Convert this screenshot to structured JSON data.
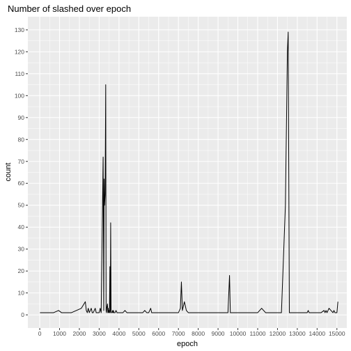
{
  "chart_data": {
    "type": "line",
    "title": "Number of slashed over epoch",
    "xlabel": "epoch",
    "ylabel": "count",
    "xlim": [
      -600,
      15500
    ],
    "ylim": [
      -6,
      136
    ],
    "x_ticks": [
      0,
      1000,
      2000,
      3000,
      4000,
      5000,
      6000,
      7000,
      8000,
      9000,
      10000,
      11000,
      12000,
      13000,
      14000,
      15000
    ],
    "y_ticks": [
      0,
      10,
      20,
      30,
      40,
      50,
      60,
      70,
      80,
      90,
      100,
      110,
      120,
      130
    ],
    "grid": true,
    "panel_background": "#ebebeb",
    "grid_color": "#ffffff",
    "line_color": "#000000",
    "series": [
      {
        "x": [
          10,
          300,
          700,
          950,
          1100,
          1600,
          2100,
          2300,
          2350,
          2400,
          2450,
          2500,
          2600,
          2650,
          2700,
          2800,
          2850,
          2900,
          3000,
          3050,
          3100,
          3200,
          3230,
          3250,
          3270,
          3300,
          3330,
          3350,
          3370,
          3380,
          3400,
          3420,
          3440,
          3460,
          3480,
          3500,
          3520,
          3540,
          3560,
          3580,
          3600,
          3620,
          3650,
          3680,
          3700,
          3720,
          3740,
          3760,
          3780,
          3800,
          3850,
          3900,
          4000,
          4100,
          4200,
          4300,
          4400,
          4500,
          4600,
          4700,
          5000,
          5200,
          5300,
          5400,
          5500,
          5600,
          5650,
          5700,
          5800,
          6000,
          6500,
          7000,
          7100,
          7150,
          7200,
          7300,
          7350,
          7400,
          7500,
          7600,
          7800,
          8000,
          8500,
          9000,
          9500,
          9580,
          9620,
          9700,
          9800,
          10000,
          10500,
          11000,
          11200,
          11400,
          11600,
          11900,
          12000,
          12200,
          12400,
          12500,
          12540,
          12600,
          12700,
          12800,
          12900,
          13000,
          13200,
          13500,
          13550,
          13600,
          13800,
          14000,
          14200,
          14350,
          14400,
          14450,
          14500,
          14550,
          14600,
          14700,
          14800,
          14850,
          14900,
          15000,
          15050
        ],
        "values": [
          1,
          1,
          1,
          2,
          1,
          1,
          3,
          6,
          2,
          1,
          3,
          1,
          3,
          1,
          1,
          3,
          1,
          1,
          1,
          3,
          1,
          72,
          2,
          62,
          50,
          55,
          105,
          2,
          1,
          3,
          4,
          5,
          1,
          3,
          1,
          2,
          1,
          22,
          1,
          42,
          2,
          1,
          1,
          2,
          1,
          2,
          1,
          1,
          1,
          1,
          2,
          1,
          1,
          1,
          1,
          2,
          1,
          1,
          1,
          1,
          1,
          1,
          2,
          1,
          1,
          3,
          1,
          1,
          1,
          1,
          1,
          1,
          3,
          15,
          2,
          6,
          4,
          2,
          1,
          1,
          1,
          1,
          1,
          1,
          1,
          18,
          1,
          1,
          1,
          1,
          1,
          1,
          3,
          1,
          1,
          1,
          1,
          1,
          50,
          120,
          129,
          1,
          1,
          1,
          1,
          1,
          1,
          1,
          2,
          1,
          1,
          1,
          1,
          2,
          1,
          2,
          1,
          2,
          3,
          2,
          1,
          2,
          1,
          1,
          6
        ]
      }
    ]
  }
}
